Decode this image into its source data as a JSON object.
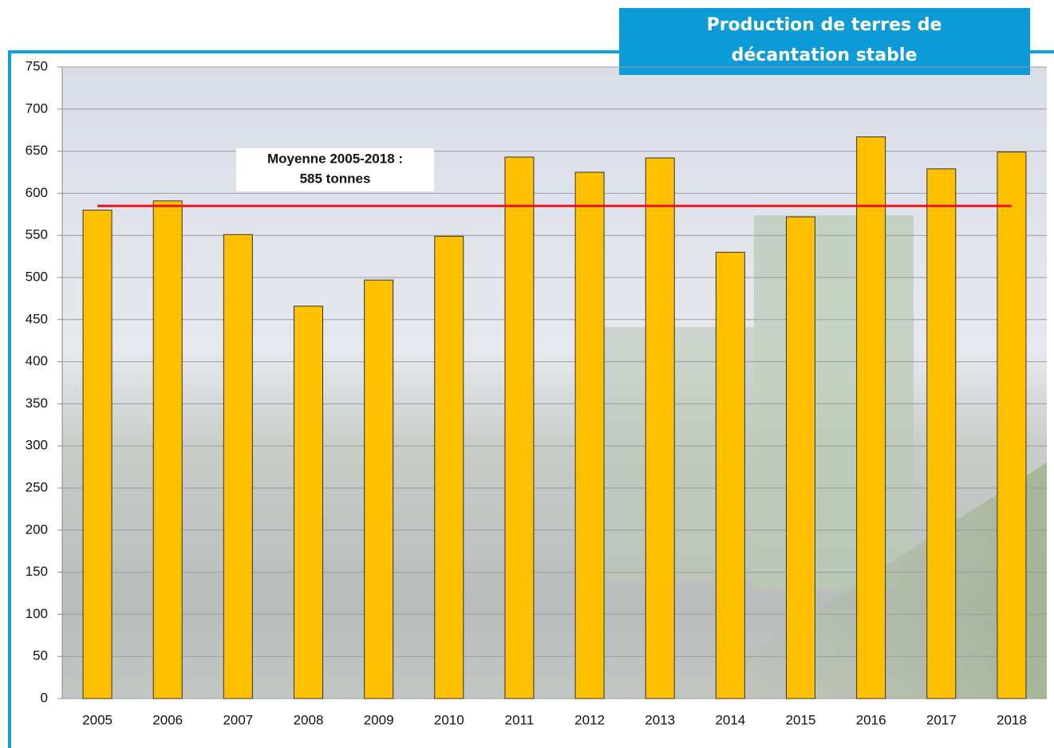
{
  "chart_data": {
    "type": "bar",
    "title": [
      "Production de terres de",
      "décantation stable"
    ],
    "categories": [
      "2005",
      "2006",
      "2007",
      "2008",
      "2009",
      "2010",
      "2011",
      "2012",
      "2013",
      "2014",
      "2015",
      "2016",
      "2017",
      "2018"
    ],
    "values": [
      580,
      591,
      551,
      466,
      497,
      549,
      643,
      625,
      642,
      530,
      572,
      667,
      629,
      649
    ],
    "color": "#ffc000",
    "ylim": [
      0,
      750
    ],
    "yticks": [
      0,
      50,
      100,
      150,
      200,
      250,
      300,
      350,
      400,
      450,
      500,
      550,
      600,
      650,
      700,
      750
    ],
    "grid": true,
    "mean_line": {
      "value": 585,
      "color": "#e8141c",
      "label": [
        "Moyenne 2005-2018 :",
        "585 tonnes"
      ]
    }
  }
}
